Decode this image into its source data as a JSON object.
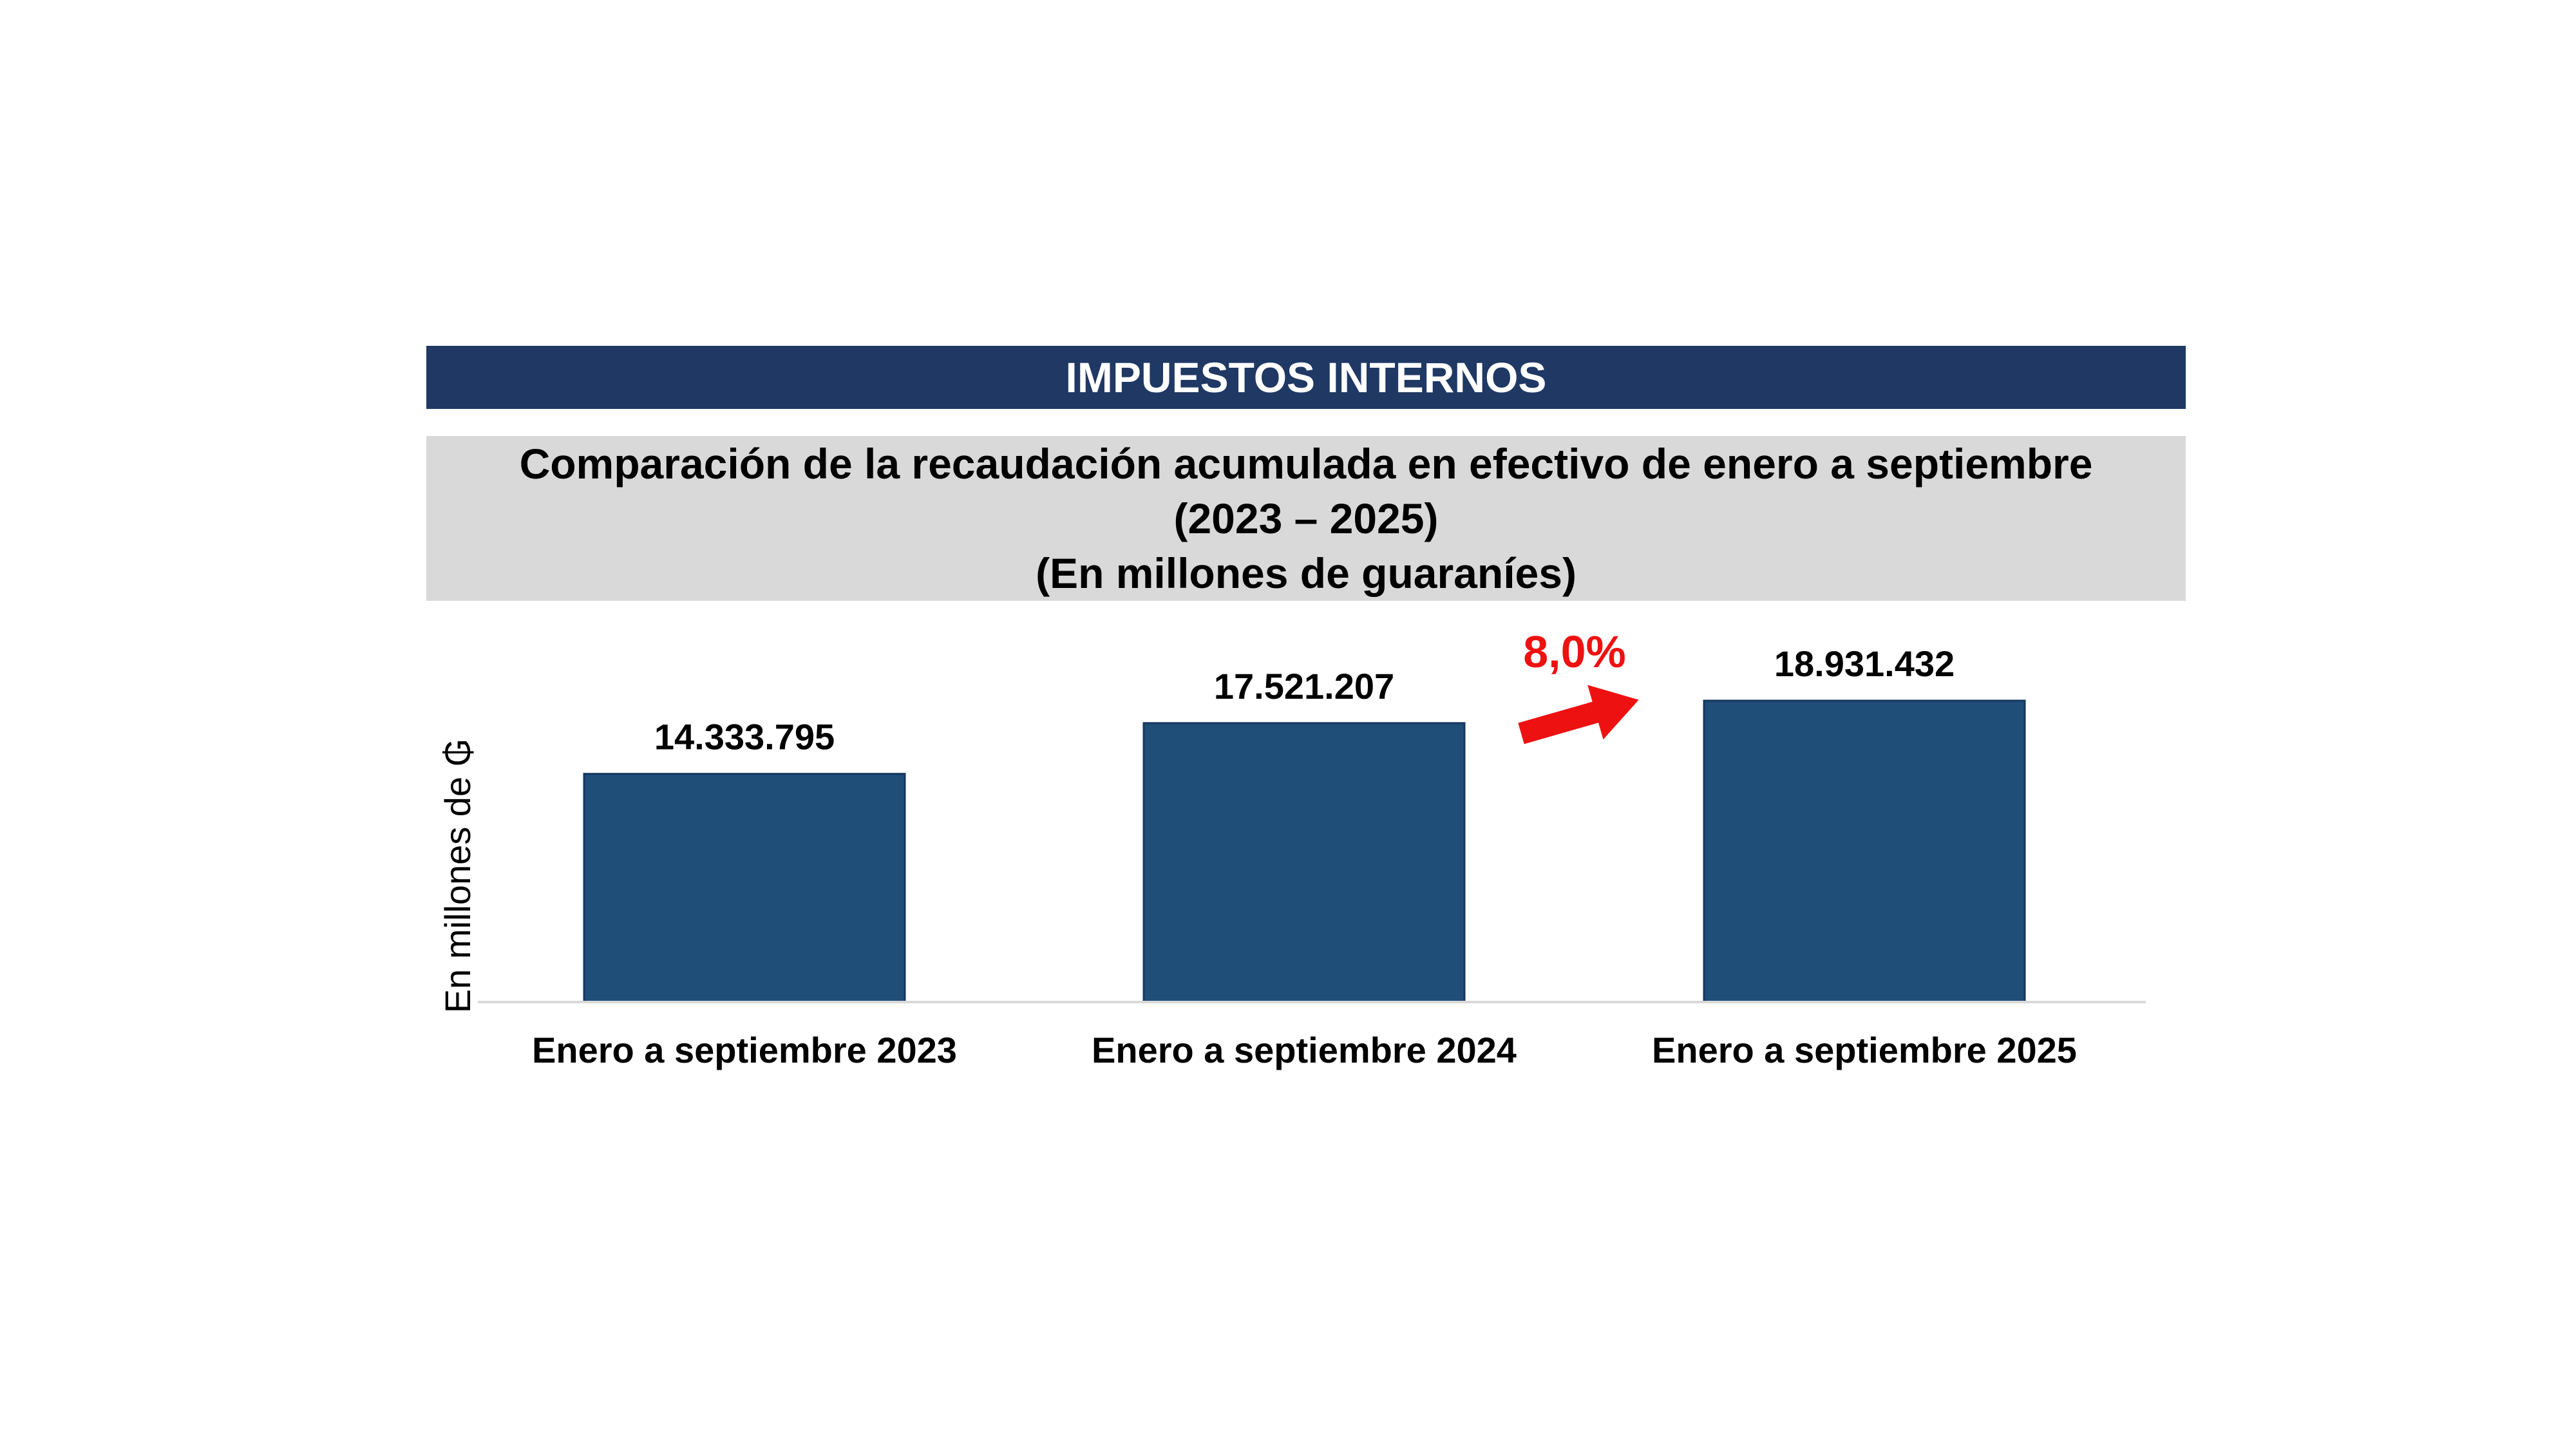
{
  "header": {
    "title": "IMPUESTOS INTERNOS"
  },
  "title_box": {
    "line1": "Comparación de la recaudación acumulada en efectivo de enero a septiembre",
    "line2": "(2023 – 2025)",
    "line3": "(En millones de guaraníes)"
  },
  "annotation": {
    "growth_label": "8,0%",
    "color": "#ee1111"
  },
  "colors": {
    "header": "#1f3864",
    "title_box": "#d9d9d9",
    "bar": "#1f4e79",
    "axis": "#d9d9d9"
  },
  "chart_data": {
    "type": "bar",
    "title": "Comparación de la recaudación acumulada en efectivo de enero a septiembre",
    "ylabel": "En millones de ₲",
    "xlabel": "",
    "categories": [
      "Enero a septiembre 2023",
      "Enero a septiembre 2024",
      "Enero a septiembre 2025"
    ],
    "values": [
      14333795,
      17521207,
      18931432
    ],
    "value_labels": [
      "14.333.795",
      "17.521.207",
      "18.931.432"
    ],
    "ylim": [
      0,
      19000000
    ],
    "grid": false,
    "legend": "none"
  }
}
